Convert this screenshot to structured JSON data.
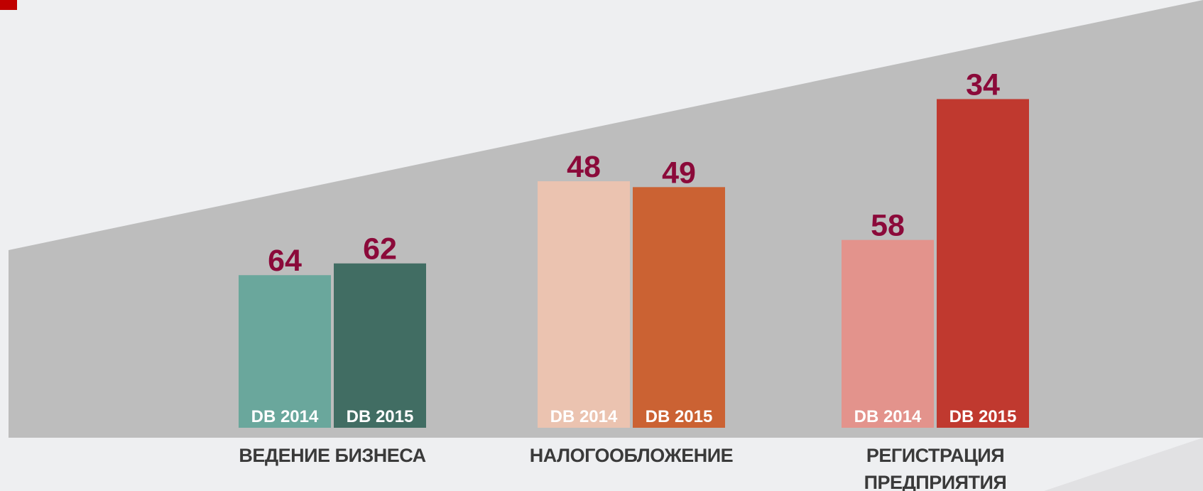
{
  "chart_data": {
    "type": "bar",
    "categories": [
      "ВЕДЕНИЕ БИЗНЕСА",
      "НАЛОГООБЛОЖЕНИЕ",
      "РЕГИСТРАЦИЯ ПРЕДПРИЯТИЯ"
    ],
    "series": [
      {
        "name": "DB 2014",
        "colors": [
          "#6aa79c",
          "#ebc3b0",
          "#e3938c"
        ],
        "values": [
          64,
          48,
          58
        ]
      },
      {
        "name": "DB 2015",
        "colors": [
          "#416d63",
          "#cb6233",
          "#c0392f"
        ],
        "values": [
          62,
          49,
          34
        ]
      }
    ],
    "ylim": [
      90,
      0
    ]
  }
}
